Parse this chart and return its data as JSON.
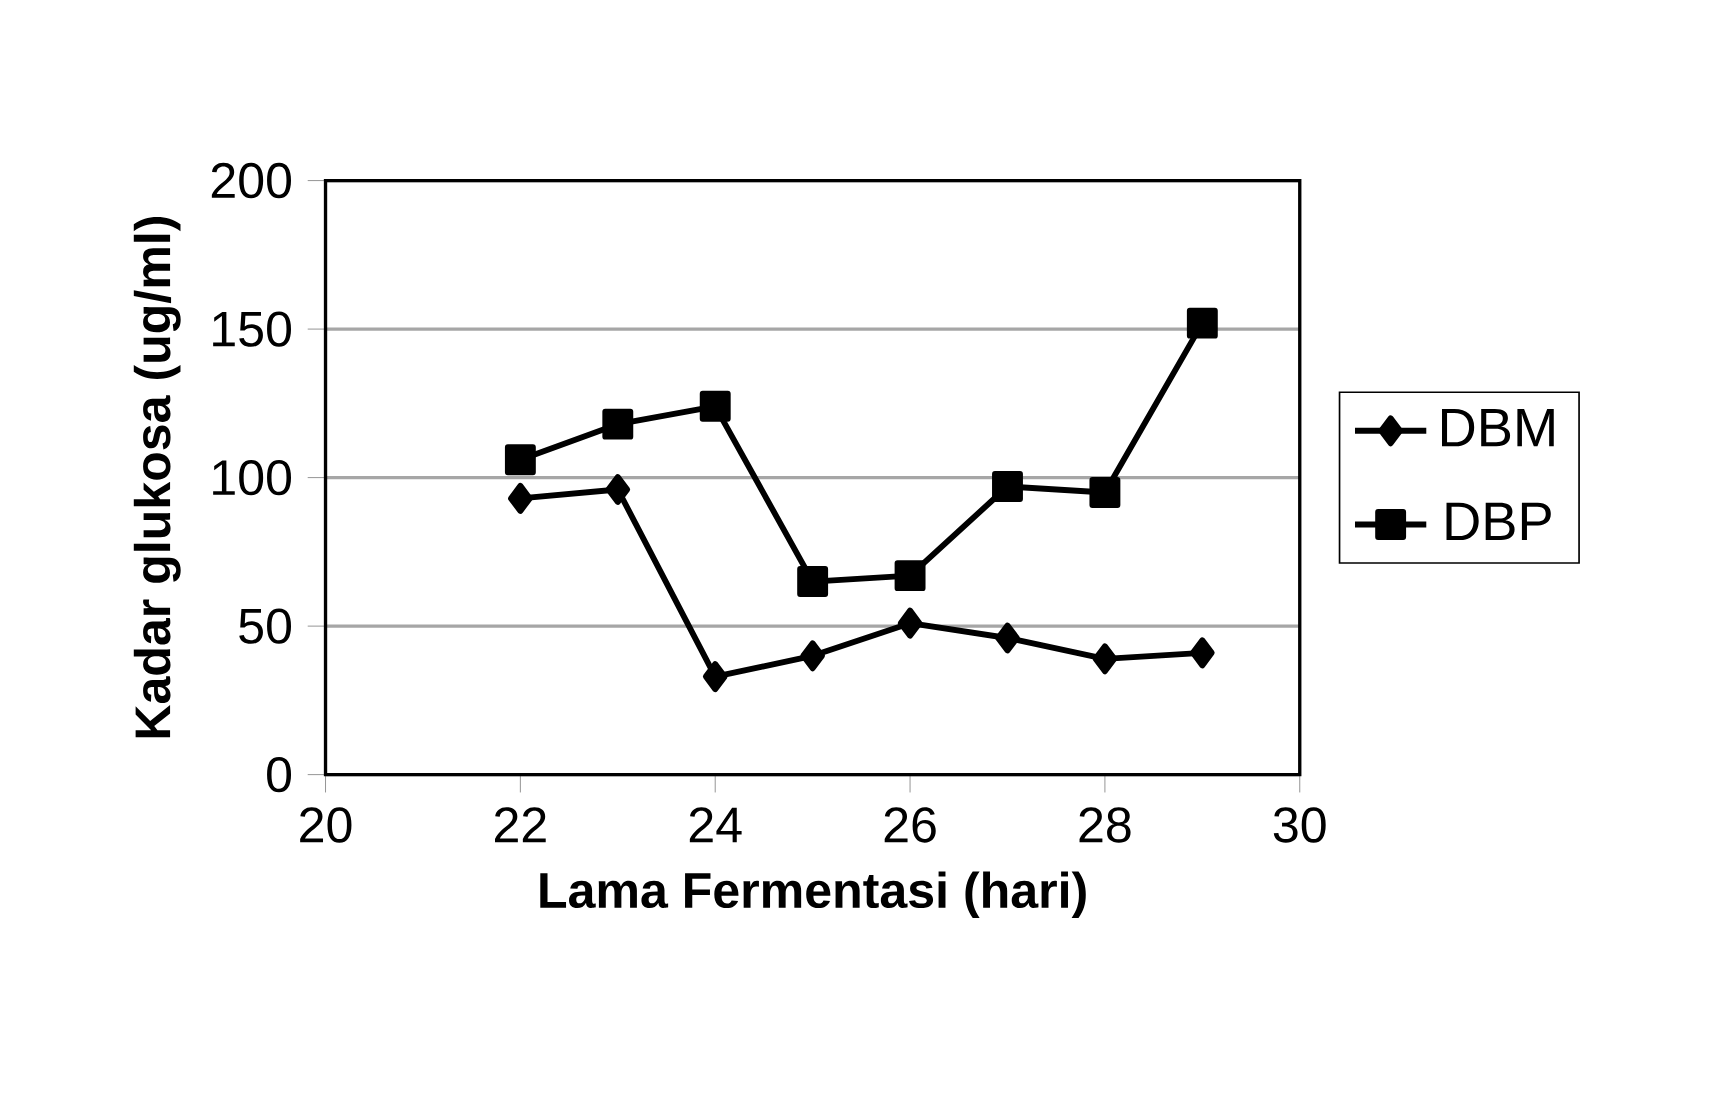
{
  "chart_data": {
    "type": "line",
    "xlabel": "Lama Fermentasi (hari)",
    "ylabel": "Kadar glukosa (ug/ml)",
    "x": [
      22,
      23,
      24,
      25,
      26,
      27,
      28,
      29
    ],
    "series": [
      {
        "name": "DBM",
        "color": "#000000",
        "marker": "diamond",
        "values": [
          93,
          96,
          33,
          40,
          51,
          46,
          39,
          41
        ]
      },
      {
        "name": "DBP",
        "color": "#000000",
        "marker": "square",
        "values": [
          106,
          118,
          124,
          65,
          67,
          97,
          95,
          152
        ]
      }
    ],
    "xlim": [
      20,
      30
    ],
    "xticks": [
      20,
      22,
      24,
      26,
      28,
      30
    ],
    "ylim": [
      0,
      200
    ],
    "yticks": [
      0,
      50,
      100,
      150,
      200
    ],
    "grid": "y",
    "legend": "right",
    "line_style": "solid"
  }
}
